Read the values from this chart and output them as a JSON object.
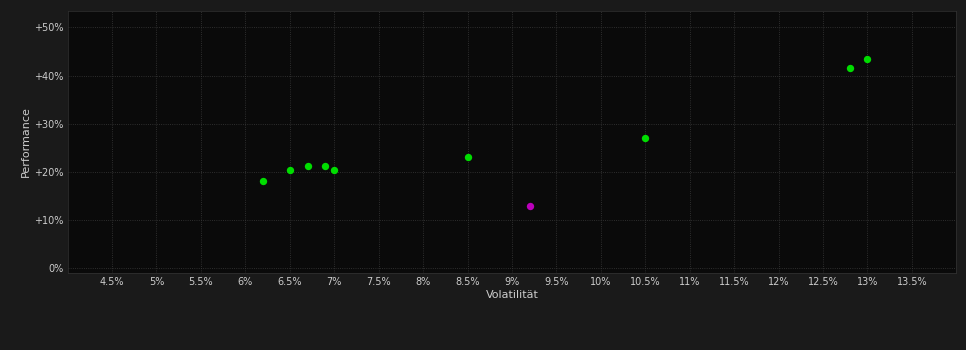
{
  "background_color": "#1a1a1a",
  "plot_bg_color": "#0a0a0a",
  "grid_color": "#3a3a3a",
  "text_color": "#cccccc",
  "xlabel": "Volatilität",
  "ylabel": "Performance",
  "xlim": [
    0.04,
    0.14
  ],
  "ylim": [
    -0.01,
    0.535
  ],
  "xticks": [
    0.045,
    0.05,
    0.055,
    0.06,
    0.065,
    0.07,
    0.075,
    0.08,
    0.085,
    0.09,
    0.095,
    0.1,
    0.105,
    0.11,
    0.115,
    0.12,
    0.125,
    0.13,
    0.135
  ],
  "yticks": [
    0.0,
    0.1,
    0.2,
    0.3,
    0.4,
    0.5
  ],
  "ytick_labels": [
    "0%",
    "+10%",
    "+20%",
    "+30%",
    "+40%",
    "+50%"
  ],
  "xtick_labels": [
    "4.5%",
    "5%",
    "5.5%",
    "6%",
    "6.5%",
    "7%",
    "7.5%",
    "8%",
    "8.5%",
    "9%",
    "9.5%",
    "10%",
    "10.5%",
    "11%",
    "11.5%",
    "12%",
    "12.5%",
    "13%",
    "13.5%"
  ],
  "green_points": [
    [
      0.062,
      0.182
    ],
    [
      0.065,
      0.203
    ],
    [
      0.067,
      0.212
    ],
    [
      0.069,
      0.213
    ],
    [
      0.07,
      0.203
    ],
    [
      0.085,
      0.231
    ],
    [
      0.105,
      0.27
    ],
    [
      0.128,
      0.415
    ],
    [
      0.13,
      0.435
    ]
  ],
  "magenta_points": [
    [
      0.092,
      0.13
    ]
  ],
  "green_color": "#00dd00",
  "magenta_color": "#bb00bb",
  "marker_size": 28
}
